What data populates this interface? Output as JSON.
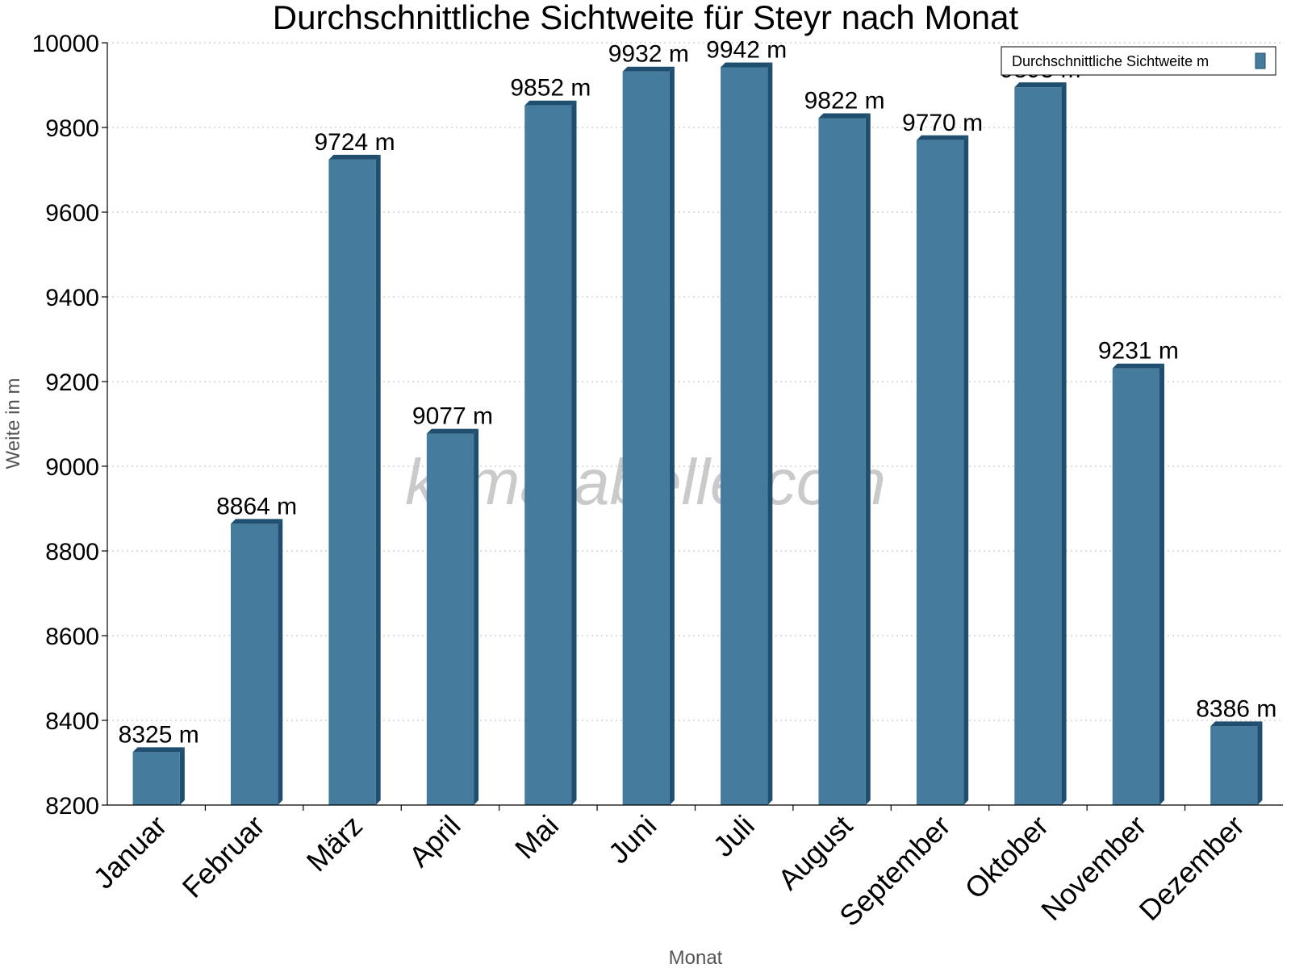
{
  "chart_data": {
    "type": "bar",
    "title": "Durchschnittliche Sichtweite für Steyr nach Monat",
    "xlabel": "Monat",
    "ylabel": "Weite in m",
    "categories": [
      "Januar",
      "Februar",
      "März",
      "April",
      "Mai",
      "Juni",
      "Juli",
      "August",
      "September",
      "Oktober",
      "November",
      "Dezember"
    ],
    "series": [
      {
        "name": "Durchschnittliche Sichtweite m",
        "values": [
          8325,
          8864,
          9724,
          9077,
          9852,
          9932,
          9942,
          9822,
          9770,
          9895,
          9231,
          8386
        ],
        "color": "#457b9d",
        "dark_color": "#1f4e6e"
      }
    ],
    "value_suffix": " m",
    "ylim": [
      8200,
      10000
    ],
    "yticks": [
      8200,
      8400,
      8600,
      8800,
      9000,
      9200,
      9400,
      9600,
      9800,
      10000
    ],
    "grid": true,
    "legend_position": "top-right"
  },
  "watermark": "klimatabelle.com"
}
